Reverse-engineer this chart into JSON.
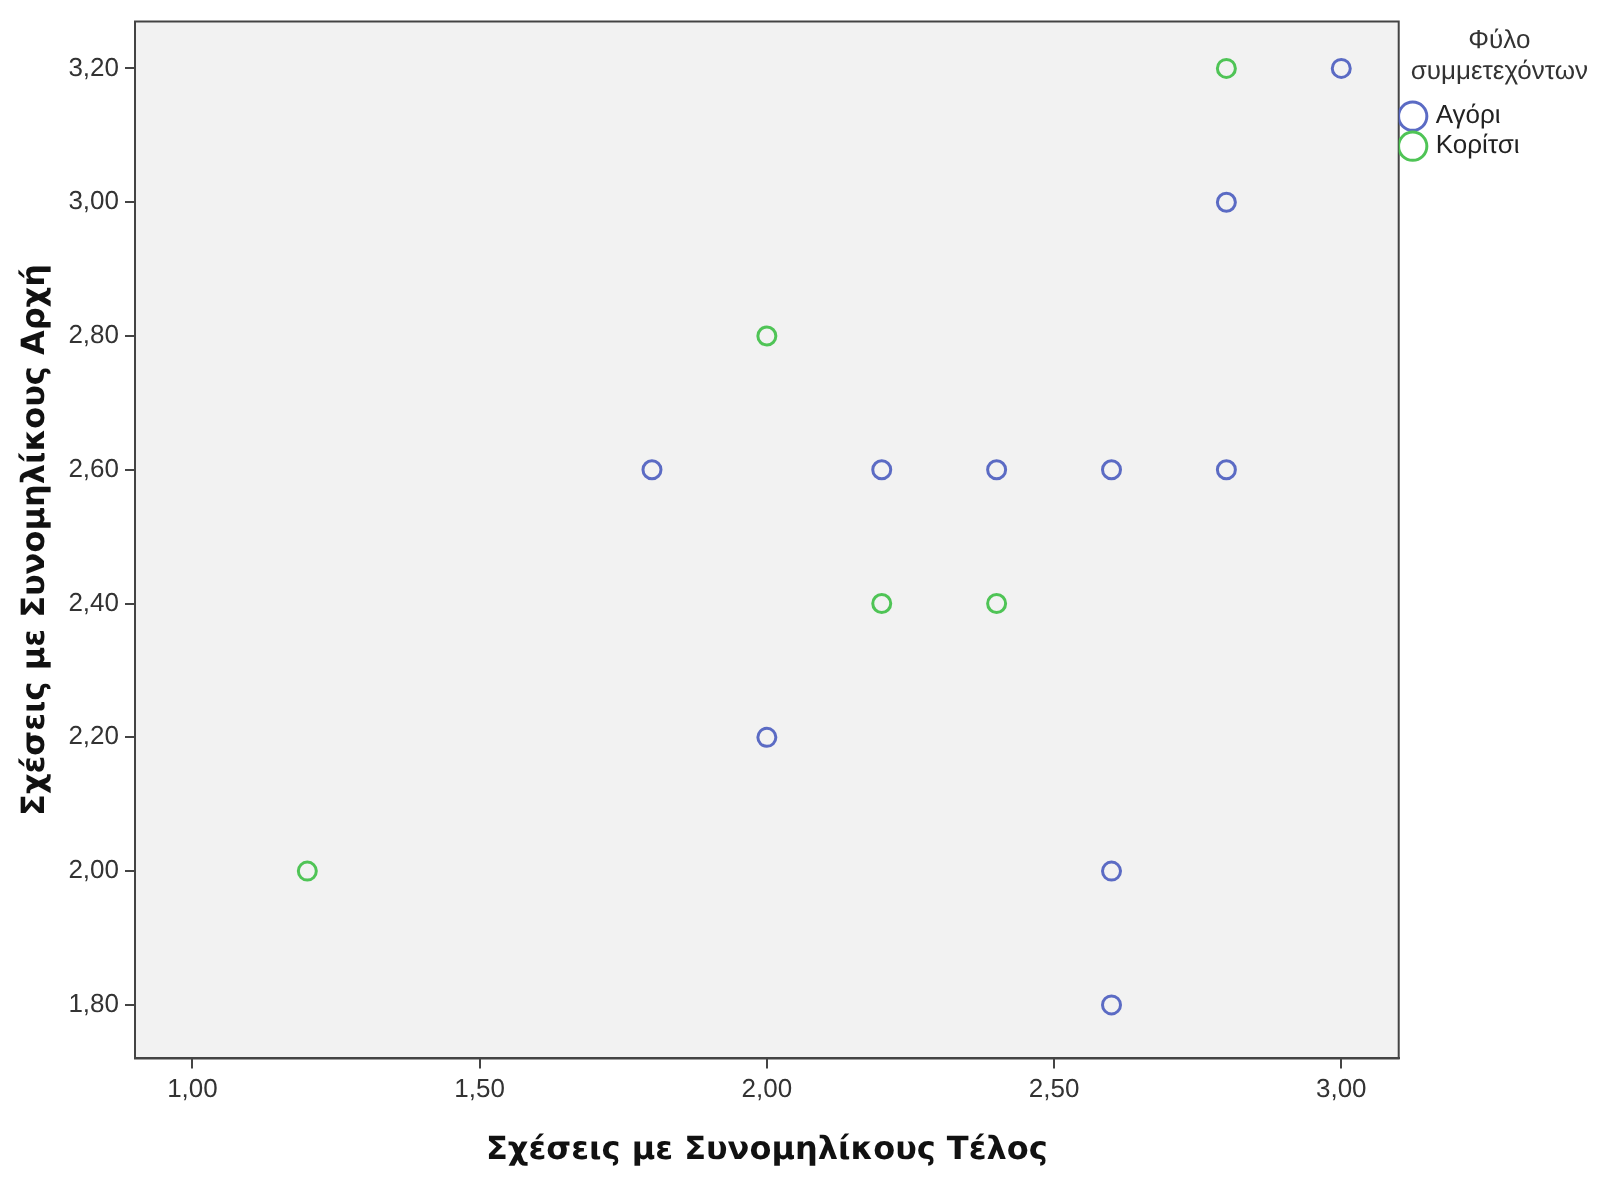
{
  "chart_data": {
    "type": "scatter",
    "xlabel": "Σχέσεις με Συνομηλίκους Τέλος",
    "ylabel": "Σχέσεις με Συνομηλίκους Αρχή",
    "legend_title": "Φύλο συμμετεχόντων",
    "legend": "top right",
    "marker": "circle",
    "grid": false,
    "xlim": [
      0.9,
      3.1
    ],
    "ylim": [
      1.72,
      3.27
    ],
    "xticks": [
      {
        "value": 1,
        "label": "1,00"
      },
      {
        "value": 1.5,
        "label": "1,50"
      },
      {
        "value": 2,
        "label": "2,00"
      },
      {
        "value": 2.5,
        "label": "2,50"
      },
      {
        "value": 3,
        "label": "3,00"
      }
    ],
    "yticks": [
      {
        "value": 1.8,
        "label": "1,80"
      },
      {
        "value": 2,
        "label": "2,00"
      },
      {
        "value": 2.2,
        "label": "2,20"
      },
      {
        "value": 2.4,
        "label": "2,40"
      },
      {
        "value": 2.6,
        "label": "2,60"
      },
      {
        "value": 2.8,
        "label": "2,80"
      },
      {
        "value": 3,
        "label": "3,00"
      },
      {
        "value": 3.2,
        "label": "3,20"
      }
    ],
    "series": [
      {
        "name": "Αγόρι",
        "color": "#5b6bc4",
        "x": [
          3.0,
          2.8,
          1.8,
          2.2,
          2.4,
          2.6,
          2.8,
          2.0,
          2.6,
          2.6
        ],
        "values": [
          3.2,
          3.0,
          2.6,
          2.6,
          2.6,
          2.6,
          2.6,
          2.2,
          2.0,
          1.8
        ]
      },
      {
        "name": "Κορίτσι",
        "color": "#4fc456",
        "x": [
          2.8,
          2.0,
          2.2,
          2.4,
          1.2
        ],
        "values": [
          3.2,
          2.8,
          2.4,
          2.4,
          2.0
        ]
      }
    ]
  }
}
